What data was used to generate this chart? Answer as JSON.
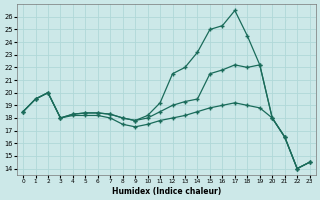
{
  "xlabel": "Humidex (Indice chaleur)",
  "bg_color": "#cce8e8",
  "grid_color": "#b0d8d8",
  "line_color": "#1a6b5a",
  "xlim": [
    -0.5,
    23.5
  ],
  "ylim": [
    13.5,
    27
  ],
  "yticks": [
    14,
    15,
    16,
    17,
    18,
    19,
    20,
    21,
    22,
    23,
    24,
    25,
    26
  ],
  "xticks": [
    0,
    1,
    2,
    3,
    4,
    5,
    6,
    7,
    8,
    9,
    10,
    11,
    12,
    13,
    14,
    15,
    16,
    17,
    18,
    19,
    20,
    21,
    22,
    23
  ],
  "line1_x": [
    0,
    1,
    2,
    3,
    4,
    5,
    6,
    7,
    8,
    9,
    10,
    11,
    12,
    13,
    14,
    15,
    16,
    17,
    18,
    19,
    20,
    21,
    22,
    23
  ],
  "line1_y": [
    18.5,
    19.5,
    20.0,
    18.0,
    18.3,
    18.4,
    18.4,
    18.3,
    18.0,
    17.8,
    18.0,
    18.5,
    19.0,
    19.3,
    19.5,
    21.5,
    21.8,
    22.2,
    22.0,
    22.2,
    18.0,
    16.5,
    14.0,
    14.5
  ],
  "line2_x": [
    0,
    1,
    2,
    3,
    4,
    5,
    6,
    7,
    8,
    9,
    10,
    11,
    12,
    13,
    14,
    15,
    16,
    17,
    18,
    19,
    20,
    21,
    22,
    23
  ],
  "line2_y": [
    18.5,
    19.5,
    20.0,
    18.0,
    18.3,
    18.4,
    18.4,
    18.3,
    18.0,
    17.8,
    18.2,
    19.2,
    21.5,
    22.0,
    23.2,
    25.0,
    25.3,
    26.5,
    24.5,
    22.2,
    18.0,
    16.5,
    14.0,
    14.5
  ],
  "line3_x": [
    0,
    1,
    2,
    3,
    4,
    5,
    6,
    7,
    8,
    9,
    10,
    11,
    12,
    13,
    14,
    15,
    16,
    17,
    18,
    19,
    20,
    21,
    22,
    23
  ],
  "line3_y": [
    18.5,
    19.5,
    20.0,
    18.0,
    18.2,
    18.2,
    18.2,
    18.0,
    17.5,
    17.3,
    17.5,
    17.8,
    18.0,
    18.2,
    18.5,
    18.8,
    19.0,
    19.2,
    19.0,
    18.8,
    18.0,
    16.5,
    14.0,
    14.5
  ]
}
